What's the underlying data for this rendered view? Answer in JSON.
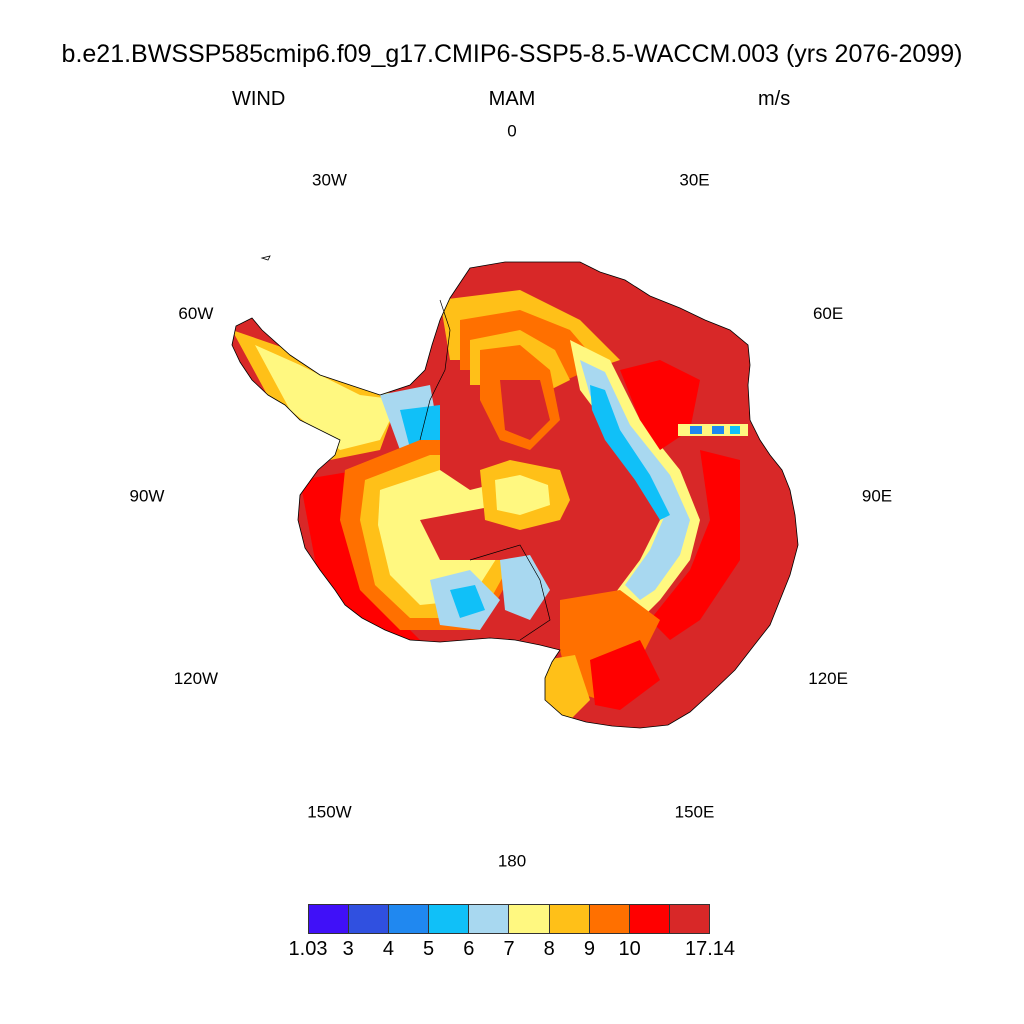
{
  "figure": {
    "title": "b.e21.BWSSP585cmip6.f09_g17.CMIP6-SSP5-8.5-WACCM.003 (yrs 2076-2099)",
    "left_label": "WIND",
    "center_label": "MAM",
    "right_label": "m/s"
  },
  "map": {
    "projection": "south-polar-stereographic",
    "region": "Antarctica",
    "variable": "WIND",
    "units": "m/s",
    "longitude_labels": [
      {
        "text": "0",
        "lon": 0
      },
      {
        "text": "30E",
        "lon": 30
      },
      {
        "text": "60E",
        "lon": 60
      },
      {
        "text": "90E",
        "lon": 90
      },
      {
        "text": "120E",
        "lon": 120
      },
      {
        "text": "150E",
        "lon": 150
      },
      {
        "text": "180",
        "lon": 180
      },
      {
        "text": "150W",
        "lon": -150
      },
      {
        "text": "120W",
        "lon": -120
      },
      {
        "text": "90W",
        "lon": -90
      },
      {
        "text": "60W",
        "lon": -60
      },
      {
        "text": "30W",
        "lon": -30
      }
    ],
    "approx_field": {
      "interior_max": "17.14 (dark red, East Antarctic plateau slopes and Ross/Ronne sectors)",
      "pole_min_band": "7-8 near the South Pole",
      "low_bands": "5-6 over Weddell/Ross ice shelves and plateau ridge"
    }
  },
  "colorbar": {
    "colors": [
      "#4010f8",
      "#3050e0",
      "#2088f0",
      "#10c0f8",
      "#a8d8f0",
      "#fff880",
      "#ffc018",
      "#ff7000",
      "#ff0000",
      "#d82828"
    ],
    "tick_labels": [
      "1.03",
      "3",
      "4",
      "5",
      "6",
      "7",
      "8",
      "9",
      "10",
      "17.14"
    ]
  }
}
